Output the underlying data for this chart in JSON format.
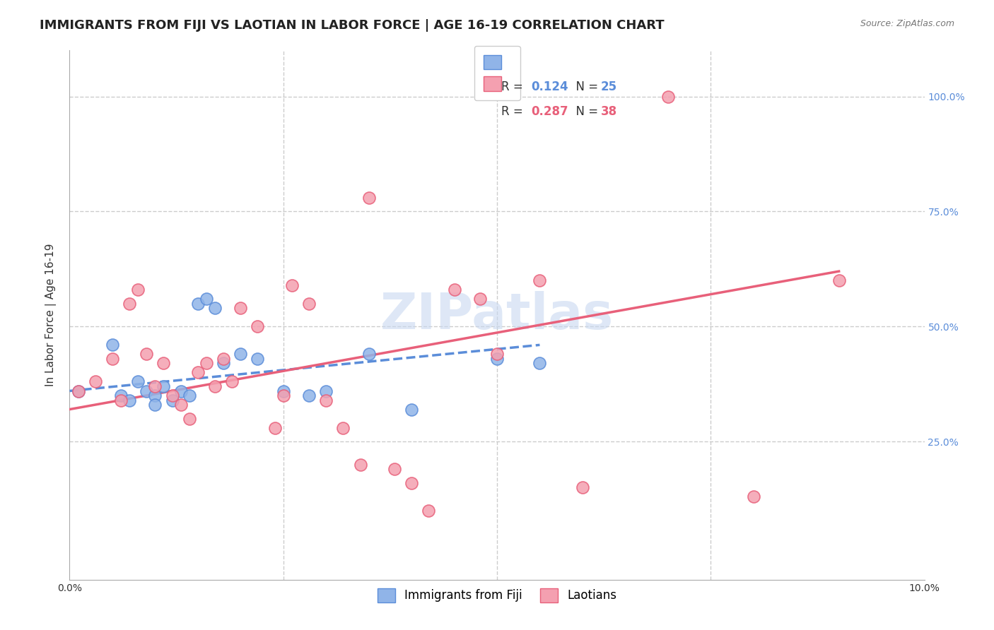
{
  "title": "IMMIGRANTS FROM FIJI VS LAOTIAN IN LABOR FORCE | AGE 16-19 CORRELATION CHART",
  "source": "Source: ZipAtlas.com",
  "ylabel": "In Labor Force | Age 16-19",
  "ytick_labels": [
    "25.0%",
    "50.0%",
    "75.0%",
    "100.0%"
  ],
  "ytick_values": [
    0.25,
    0.5,
    0.75,
    1.0
  ],
  "xlim": [
    0.0,
    0.1
  ],
  "ylim": [
    -0.05,
    1.1
  ],
  "fiji_color": "#90b4e8",
  "fiji_color_dark": "#5b8dd9",
  "laotian_color": "#f4a0b0",
  "laotian_color_dark": "#e8607a",
  "fiji_R": 0.124,
  "fiji_N": 25,
  "laotian_R": 0.287,
  "laotian_N": 38,
  "fiji_scatter_x": [
    0.001,
    0.005,
    0.006,
    0.007,
    0.008,
    0.009,
    0.01,
    0.01,
    0.011,
    0.012,
    0.013,
    0.014,
    0.015,
    0.016,
    0.017,
    0.018,
    0.02,
    0.022,
    0.025,
    0.028,
    0.03,
    0.035,
    0.04,
    0.05,
    0.055
  ],
  "fiji_scatter_y": [
    0.36,
    0.46,
    0.35,
    0.34,
    0.38,
    0.36,
    0.35,
    0.33,
    0.37,
    0.34,
    0.36,
    0.35,
    0.55,
    0.56,
    0.54,
    0.42,
    0.44,
    0.43,
    0.36,
    0.35,
    0.36,
    0.44,
    0.32,
    0.43,
    0.42
  ],
  "laotian_scatter_x": [
    0.001,
    0.003,
    0.005,
    0.006,
    0.007,
    0.008,
    0.009,
    0.01,
    0.011,
    0.012,
    0.013,
    0.014,
    0.015,
    0.016,
    0.017,
    0.018,
    0.019,
    0.02,
    0.022,
    0.024,
    0.025,
    0.026,
    0.028,
    0.03,
    0.032,
    0.034,
    0.035,
    0.038,
    0.04,
    0.042,
    0.045,
    0.048,
    0.05,
    0.055,
    0.06,
    0.07,
    0.08,
    0.09
  ],
  "laotian_scatter_y": [
    0.36,
    0.38,
    0.43,
    0.34,
    0.55,
    0.58,
    0.44,
    0.37,
    0.42,
    0.35,
    0.33,
    0.3,
    0.4,
    0.42,
    0.37,
    0.43,
    0.38,
    0.54,
    0.5,
    0.28,
    0.35,
    0.59,
    0.55,
    0.34,
    0.28,
    0.2,
    0.78,
    0.19,
    0.16,
    0.1,
    0.58,
    0.56,
    0.44,
    0.6,
    0.15,
    1.0,
    0.13,
    0.6
  ],
  "fiji_trend_x": [
    0.0,
    0.055
  ],
  "fiji_trend_y": [
    0.36,
    0.46
  ],
  "laotian_trend_x": [
    0.0,
    0.09
  ],
  "laotian_trend_y": [
    0.32,
    0.62
  ],
  "background_color": "#ffffff",
  "grid_color": "#cccccc",
  "right_label_color": "#5b8dd9",
  "title_fontsize": 13,
  "axis_label_fontsize": 11,
  "tick_fontsize": 10,
  "legend_fontsize": 12,
  "watermark_text": "ZIPatlas",
  "watermark_color": "#c8d8f0",
  "watermark_fontsize": 52
}
